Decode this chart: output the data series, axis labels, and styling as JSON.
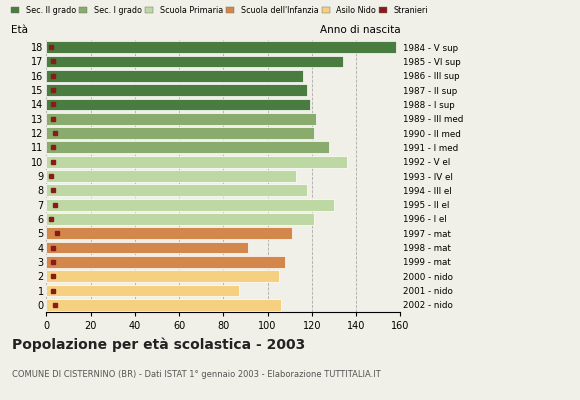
{
  "ages": [
    18,
    17,
    16,
    15,
    14,
    13,
    12,
    11,
    10,
    9,
    8,
    7,
    6,
    5,
    4,
    3,
    2,
    1,
    0
  ],
  "values": [
    158,
    134,
    116,
    118,
    119,
    122,
    121,
    128,
    136,
    113,
    118,
    130,
    121,
    111,
    91,
    108,
    105,
    87,
    106
  ],
  "foreigners": [
    2,
    3,
    3,
    3,
    3,
    3,
    4,
    3,
    3,
    2,
    3,
    4,
    2,
    5,
    3,
    3,
    3,
    3,
    4
  ],
  "anno_nascita": [
    "1984 - V sup",
    "1985 - VI sup",
    "1986 - III sup",
    "1987 - II sup",
    "1988 - I sup",
    "1989 - III med",
    "1990 - II med",
    "1991 - I med",
    "1992 - V el",
    "1993 - IV el",
    "1994 - III el",
    "1995 - II el",
    "1996 - I el",
    "1997 - mat",
    "1998 - mat",
    "1999 - mat",
    "2000 - nido",
    "2001 - nido",
    "2002 - nido"
  ],
  "bar_colors_by_age": {
    "18": "#4a7c3f",
    "17": "#4a7c3f",
    "16": "#4a7c3f",
    "15": "#4a7c3f",
    "14": "#4a7c3f",
    "13": "#8aab6e",
    "12": "#8aab6e",
    "11": "#8aab6e",
    "10": "#bdd8a3",
    "9": "#bdd8a3",
    "8": "#bdd8a3",
    "7": "#bdd8a3",
    "6": "#bdd8a3",
    "5": "#d4874a",
    "4": "#d4874a",
    "3": "#d4874a",
    "2": "#f5d080",
    "1": "#f5d080",
    "0": "#f5d080"
  },
  "legend_labels": [
    "Sec. II grado",
    "Sec. I grado",
    "Scuola Primaria",
    "Scuola dell'Infanzia",
    "Asilo Nido",
    "Stranieri"
  ],
  "legend_colors": [
    "#4a7c3f",
    "#8aab6e",
    "#bdd8a3",
    "#d4874a",
    "#f5d080",
    "#8b1a1a"
  ],
  "foreigner_color": "#8b1a1a",
  "title": "Popolazione per età scolastica - 2003",
  "subtitle": "COMUNE DI CISTERNINO (BR) - Dati ISTAT 1° gennaio 2003 - Elaborazione TUTTITALIA.IT",
  "label_eta": "Età",
  "label_anno": "Anno di nascita",
  "xlim": [
    0,
    160
  ],
  "xticks": [
    0,
    20,
    40,
    60,
    80,
    100,
    120,
    140,
    160
  ],
  "bg_color": "#f0f0e8"
}
